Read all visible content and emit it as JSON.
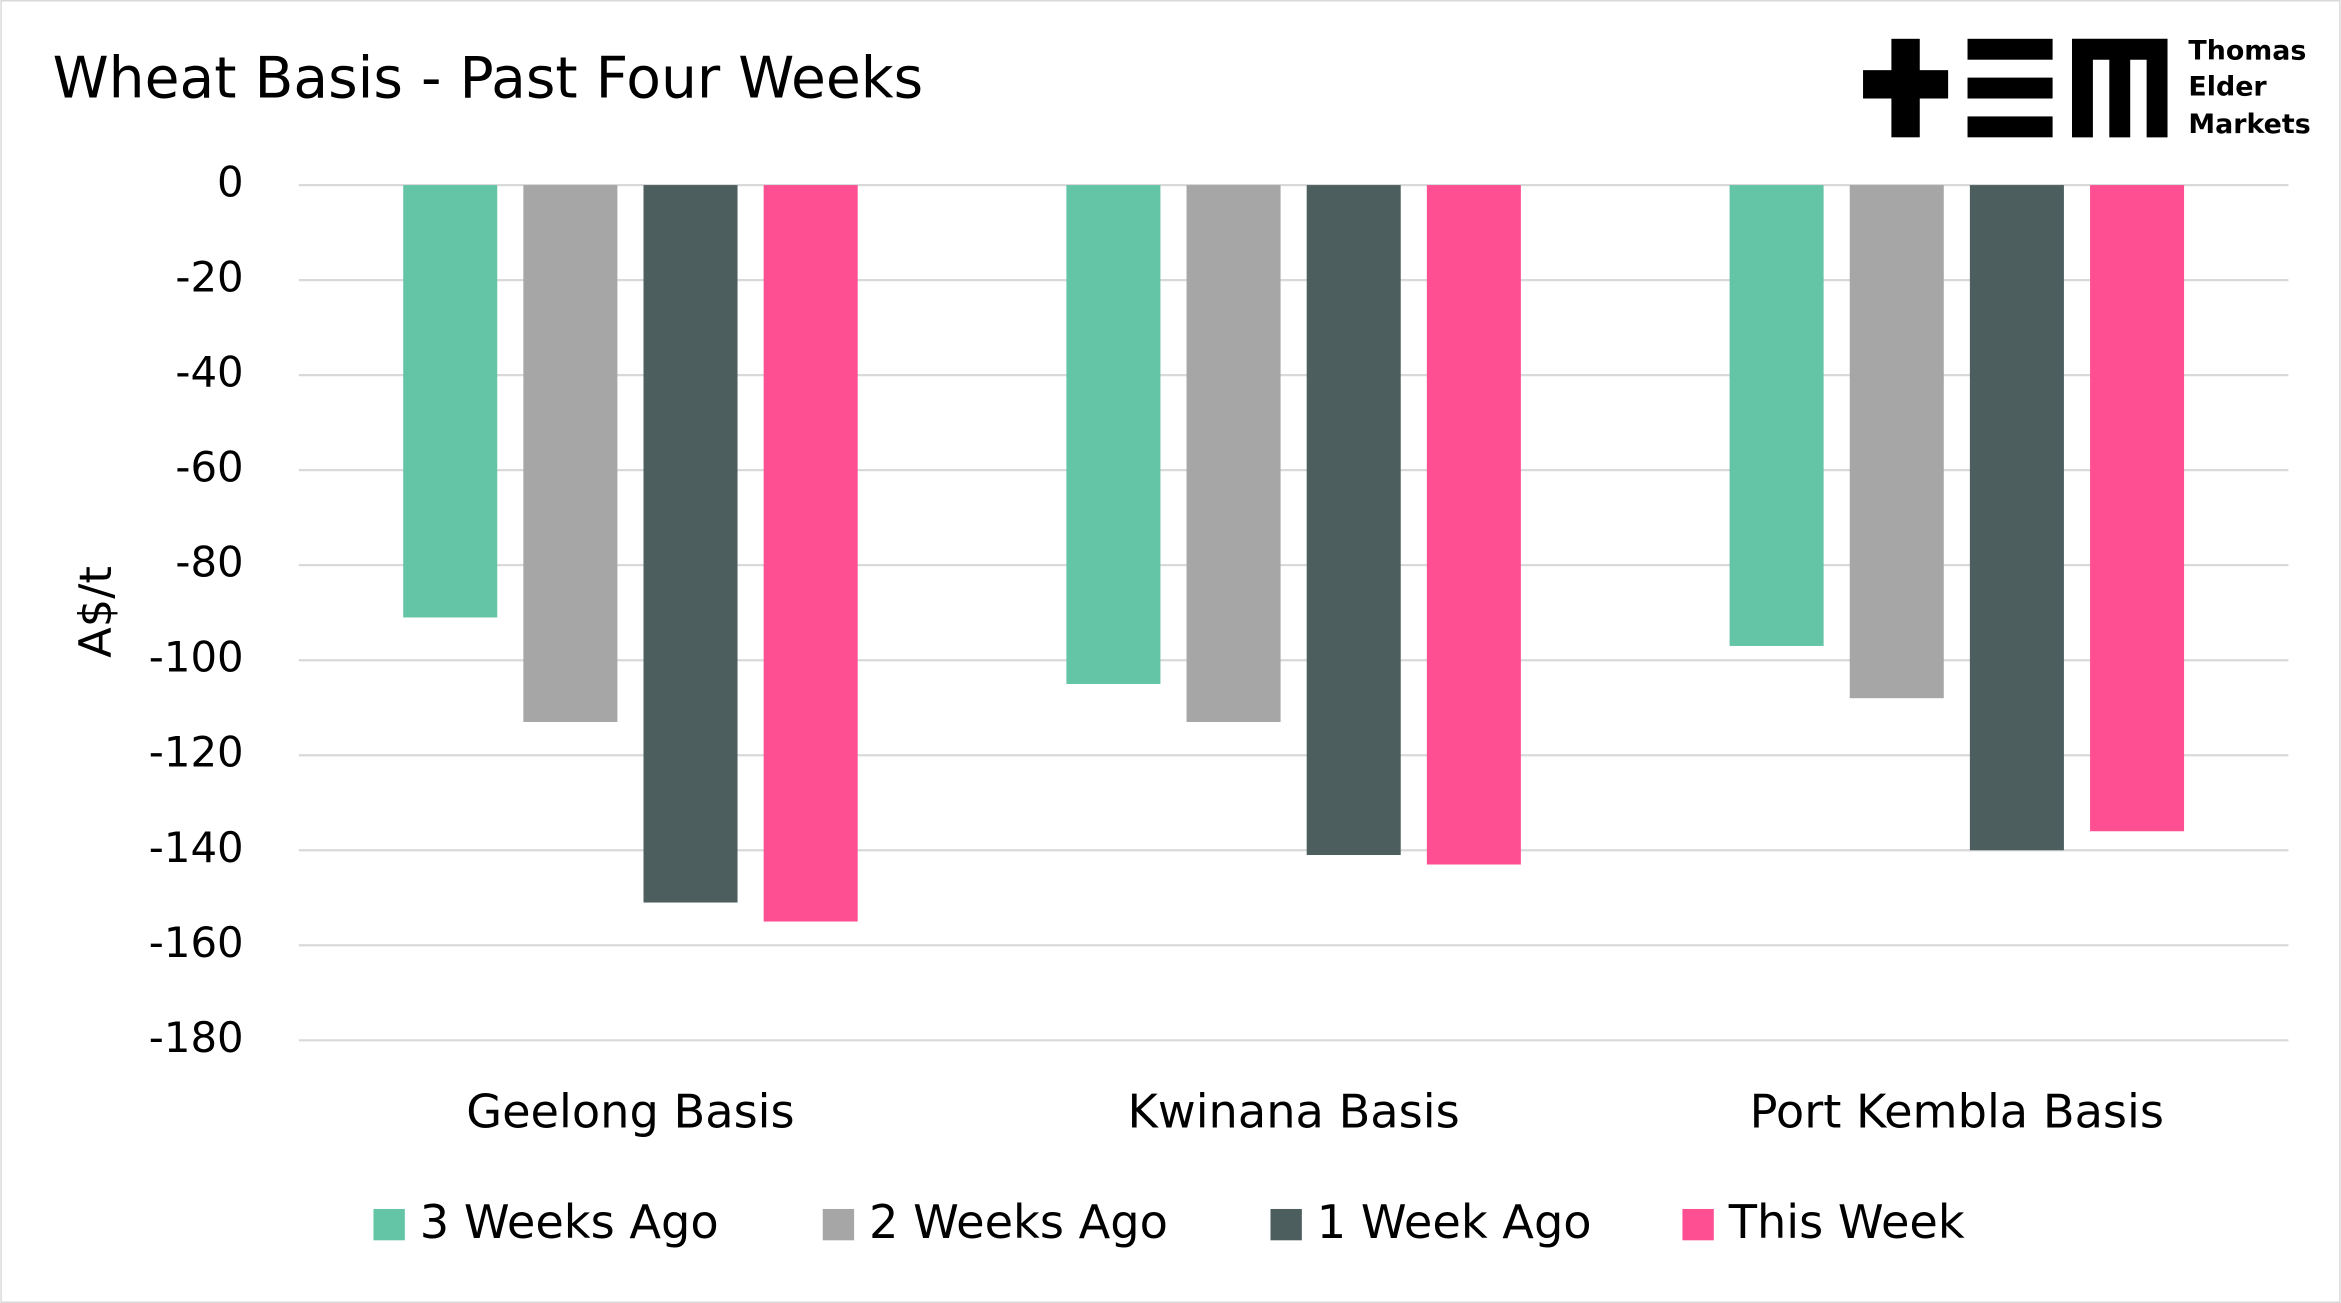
{
  "chart_data": {
    "type": "bar",
    "title": "Wheat Basis - Past Four Weeks",
    "logo": [
      "Thomas",
      "Elder",
      "Markets"
    ],
    "y_label": "A$/t",
    "categories": [
      "Geelong Basis",
      "Kwinana Basis",
      "Port Kembla Basis"
    ],
    "series": [
      {
        "name": "3 Weeks Ago",
        "color": "#63c5a5",
        "values": [
          -91,
          -105,
          -97
        ]
      },
      {
        "name": "2 Weeks Ago",
        "color": "#a6a6a6",
        "values": [
          -113,
          -113,
          -108
        ]
      },
      {
        "name": "1 Week Ago",
        "color": "#4d5e5f",
        "values": [
          -151,
          -141,
          -140
        ]
      },
      {
        "name": "This Week",
        "color": "#ff4f93",
        "values": [
          -155,
          -143,
          -136
        ]
      }
    ],
    "ylim": [
      -180,
      0
    ],
    "yticks": [
      0,
      -20,
      -40,
      -60,
      -80,
      -100,
      -120,
      -140,
      -160,
      -180
    ],
    "grid": true,
    "legend": "bottom"
  }
}
